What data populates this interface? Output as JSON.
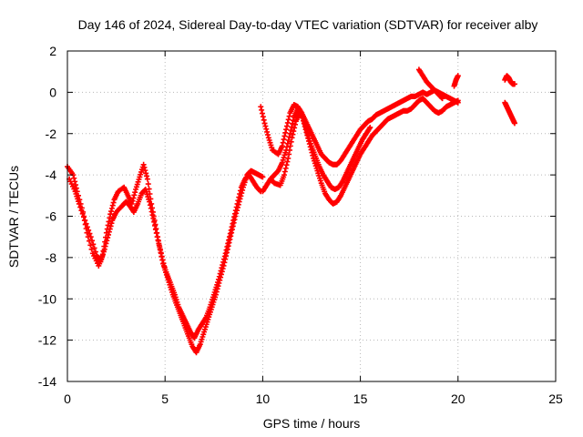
{
  "chart_data": {
    "type": "scatter",
    "title": "Day 146 of 2024, Sidereal Day-to-day VTEC variation (SDTVAR) for receiver alby",
    "xlabel": "GPS time / hours",
    "ylabel": "SDTVAR / TECUs",
    "xlim": [
      0,
      25
    ],
    "ylim": [
      -14,
      2
    ],
    "xticks": [
      0,
      5,
      10,
      15,
      20,
      25
    ],
    "yticks": [
      -14,
      -12,
      -10,
      -8,
      -6,
      -4,
      -2,
      0,
      2
    ],
    "grid": true,
    "marker": "+",
    "color": "#ff0000",
    "series": [
      {
        "x": [
          0.0,
          0.3,
          0.5,
          0.8,
          1.0,
          1.3,
          1.6,
          1.8,
          2.0,
          2.2,
          2.4,
          2.6,
          2.9,
          3.1,
          3.3,
          3.5,
          3.7,
          3.9,
          4.1,
          4.3,
          4.5,
          4.7,
          4.9,
          5.1,
          5.3,
          5.5,
          5.7,
          5.9,
          6.1,
          6.3,
          6.5,
          6.7,
          6.9,
          7.1,
          7.3,
          7.5,
          7.7,
          7.9,
          8.1,
          8.3,
          8.5,
          8.7,
          8.9,
          9.1,
          9.3,
          9.5,
          9.7,
          9.9
        ],
        "y": [
          -3.6,
          -4.0,
          -4.8,
          -5.8,
          -6.8,
          -7.8,
          -8.4,
          -7.9,
          -6.8,
          -5.9,
          -5.2,
          -4.8,
          -4.6,
          -5.0,
          -5.4,
          -4.7,
          -4.1,
          -3.5,
          -4.2,
          -5.4,
          -6.4,
          -7.4,
          -8.3,
          -8.8,
          -9.3,
          -9.8,
          -10.4,
          -10.8,
          -11.2,
          -11.6,
          -11.9,
          -11.5,
          -11.2,
          -10.9,
          -10.4,
          -9.8,
          -9.2,
          -8.5,
          -7.8,
          -7.0,
          -6.2,
          -5.4,
          -4.6,
          -4.2,
          -4.0,
          -4.3,
          -4.6,
          -4.8
        ]
      },
      {
        "x": [
          0.1,
          0.4,
          0.6,
          0.9,
          1.2,
          1.5,
          1.7,
          1.9,
          2.1,
          2.3,
          2.5,
          2.8,
          3.0,
          3.2,
          3.4,
          3.6,
          3.8,
          4.0,
          4.2,
          4.4,
          4.6,
          4.8,
          5.0,
          5.2,
          5.4,
          5.6,
          5.8,
          6.0,
          6.2,
          6.4,
          6.6,
          6.8,
          7.0,
          7.2,
          7.4,
          7.6,
          7.8,
          8.0,
          8.2,
          8.4,
          8.6,
          8.8,
          9.0,
          9.2,
          9.4,
          9.6,
          9.8,
          10.0
        ],
        "y": [
          -4.2,
          -4.8,
          -5.4,
          -6.2,
          -7.0,
          -7.9,
          -8.2,
          -7.6,
          -6.9,
          -6.2,
          -5.8,
          -5.5,
          -5.3,
          -5.5,
          -5.8,
          -5.4,
          -4.9,
          -4.7,
          -5.3,
          -6.1,
          -7.0,
          -7.8,
          -8.6,
          -9.2,
          -9.8,
          -10.3,
          -10.8,
          -11.3,
          -11.8,
          -12.3,
          -12.6,
          -12.2,
          -11.6,
          -11.0,
          -10.4,
          -9.8,
          -9.1,
          -8.4,
          -7.6,
          -6.8,
          -6.0,
          -5.3,
          -4.6,
          -4.0,
          -3.8,
          -3.9,
          -4.0,
          -4.1
        ]
      },
      {
        "x": [
          9.9,
          10.1,
          10.3,
          10.5,
          10.8,
          11.0,
          11.2,
          11.4,
          11.6,
          11.8,
          12.0,
          12.2,
          12.4,
          12.6,
          12.8,
          13.0,
          13.2,
          13.4,
          13.6,
          13.8,
          14.0,
          14.2,
          14.4,
          14.6,
          14.8,
          15.0,
          15.2,
          15.4,
          15.6,
          15.8,
          16.0,
          16.2,
          16.4,
          16.6,
          16.8,
          17.0,
          17.2,
          17.4,
          17.6,
          17.8,
          18.0,
          18.2,
          18.4,
          18.6,
          18.8,
          19.0,
          19.2,
          19.4,
          19.6,
          19.8,
          20.0
        ],
        "y": [
          -0.7,
          -1.5,
          -2.2,
          -2.8,
          -3.0,
          -2.6,
          -1.8,
          -1.0,
          -0.6,
          -0.7,
          -1.0,
          -1.4,
          -1.8,
          -2.2,
          -2.6,
          -3.0,
          -3.2,
          -3.4,
          -3.5,
          -3.5,
          -3.3,
          -3.0,
          -2.7,
          -2.4,
          -2.1,
          -1.8,
          -1.6,
          -1.4,
          -1.3,
          -1.1,
          -1.0,
          -0.9,
          -0.8,
          -0.7,
          -0.6,
          -0.5,
          -0.4,
          -0.3,
          -0.2,
          -0.2,
          -0.1,
          0.0,
          -0.1,
          0.0,
          0.1,
          0.0,
          -0.1,
          -0.2,
          -0.3,
          -0.4,
          -0.5
        ]
      },
      {
        "x": [
          10.0,
          10.2,
          10.4,
          10.6,
          10.8,
          11.0,
          11.2,
          11.4,
          11.6,
          11.8,
          12.0,
          12.2,
          12.4,
          12.6,
          12.8,
          13.0,
          13.2,
          13.4,
          13.6,
          13.8,
          14.0,
          14.2,
          14.4,
          14.6,
          14.8,
          15.0,
          15.2,
          15.4,
          15.6,
          15.8,
          16.0,
          16.2,
          16.4,
          16.6,
          16.8,
          17.0,
          17.2,
          17.4,
          17.6,
          17.8,
          18.0,
          18.2,
          18.4,
          18.6,
          18.8,
          19.0,
          19.2,
          19.4,
          19.6,
          19.8,
          20.0
        ],
        "y": [
          -4.8,
          -4.5,
          -4.2,
          -4.0,
          -3.8,
          -3.4,
          -2.8,
          -2.0,
          -1.2,
          -0.8,
          -1.1,
          -1.8,
          -2.5,
          -3.2,
          -3.8,
          -4.4,
          -4.9,
          -5.2,
          -5.4,
          -5.3,
          -5.0,
          -4.6,
          -4.2,
          -3.8,
          -3.4,
          -3.0,
          -2.7,
          -2.4,
          -2.1,
          -1.9,
          -1.7,
          -1.5,
          -1.3,
          -1.2,
          -1.1,
          -1.0,
          -0.9,
          -0.9,
          -0.8,
          -0.6,
          -0.4,
          -0.3,
          -0.5,
          -0.7,
          -0.9,
          -1.0,
          -0.9,
          -0.7,
          -0.6,
          -0.5,
          -0.4
        ]
      },
      {
        "x": [
          10.4,
          10.6,
          10.9,
          11.1,
          11.3,
          11.5,
          11.7,
          11.9,
          12.1,
          12.3,
          12.5,
          12.7,
          12.9,
          13.1,
          13.3,
          13.5,
          13.7,
          13.9,
          14.1,
          14.3,
          14.5,
          14.7,
          14.9,
          15.1,
          15.3,
          15.5
        ],
        "y": [
          -4.2,
          -4.4,
          -4.5,
          -4.0,
          -3.2,
          -2.2,
          -1.4,
          -1.0,
          -1.3,
          -2.0,
          -2.6,
          -3.1,
          -3.6,
          -4.0,
          -4.3,
          -4.6,
          -4.7,
          -4.6,
          -4.3,
          -3.9,
          -3.5,
          -3.1,
          -2.7,
          -2.3,
          -2.0,
          -1.7
        ]
      },
      {
        "x": [
          18.0,
          18.2,
          18.4,
          18.6,
          18.8,
          19.0,
          19.2
        ],
        "y": [
          1.1,
          0.8,
          0.5,
          0.3,
          0.1,
          -0.1,
          -0.3
        ]
      },
      {
        "x": [
          19.8,
          19.9,
          20.0
        ],
        "y": [
          0.3,
          0.6,
          0.8
        ]
      },
      {
        "x": [
          22.4,
          22.5,
          22.6,
          22.7,
          22.8,
          22.9
        ],
        "y": [
          0.6,
          0.8,
          0.7,
          0.5,
          0.4,
          0.4
        ]
      },
      {
        "x": [
          22.4,
          22.5,
          22.6,
          22.7,
          22.8,
          22.9
        ],
        "y": [
          -0.5,
          -0.7,
          -0.9,
          -1.1,
          -1.3,
          -1.5
        ]
      }
    ]
  }
}
